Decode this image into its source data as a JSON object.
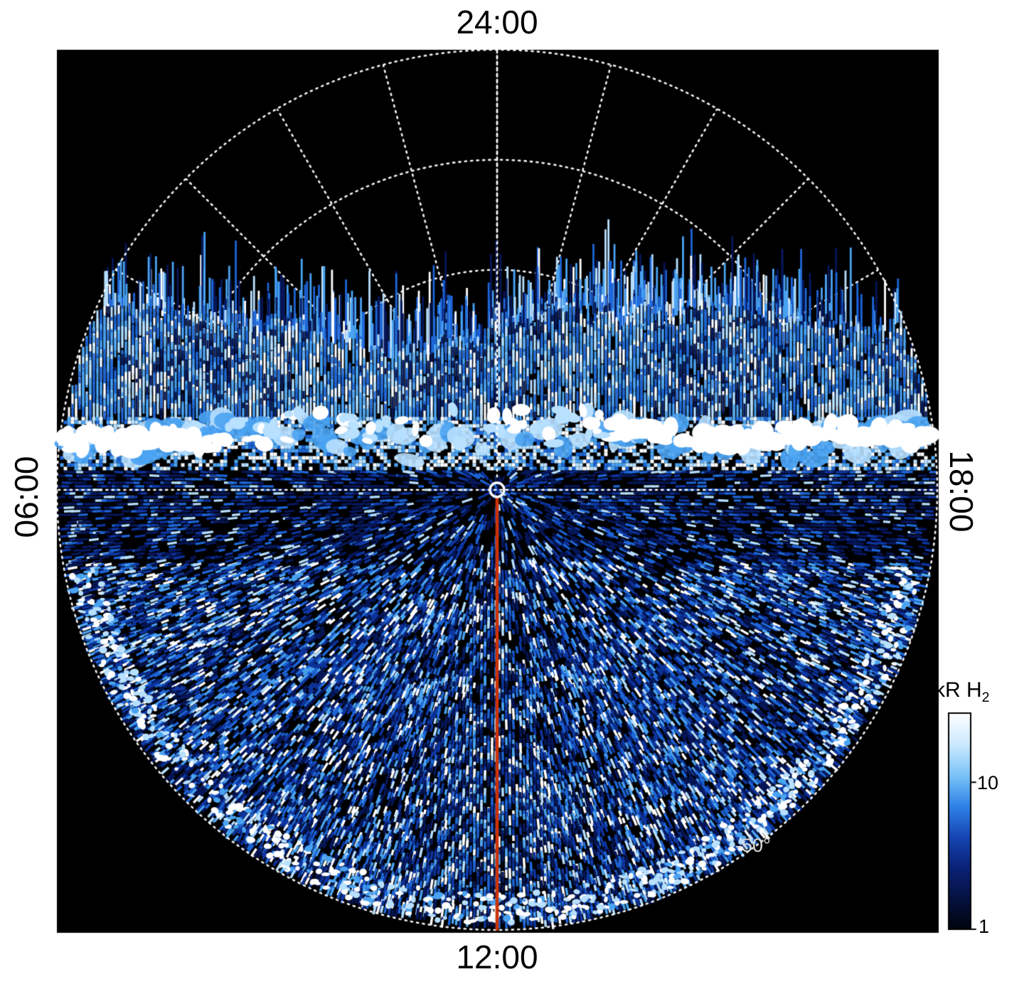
{
  "figure": {
    "page_bg": "#ffffff",
    "plot_bg": "#000000",
    "grid_color": "#ffffff",
    "axis_labels": {
      "top": "24:00",
      "bottom": "12:00",
      "left": "06:00",
      "right": "18:00"
    },
    "latitude_label": "-50°",
    "colorbar": {
      "title_main": "kR H",
      "title_sub": "2",
      "ticks": [
        {
          "label": "10",
          "frac": 0.68
        },
        {
          "label": "1",
          "frac": 0.0
        }
      ],
      "colors_bottom_to_top": [
        "#01040f",
        "#051240",
        "#0a2278",
        "#1646b4",
        "#2f84e8",
        "#7cc4f8",
        "#cdeaff",
        "#ffffff"
      ]
    },
    "meridian_line_color": "#cc3305",
    "pole_marker_color": "#ffffff"
  },
  "chart_data": {
    "type": "heatmap",
    "projection": "polar",
    "quantity": "H2 auroral emission brightness",
    "units": "kR",
    "angular_axis": "local time (hours)",
    "angular_tick_labels": [
      "24:00",
      "06:00",
      "12:00",
      "18:00"
    ],
    "angular_tick_hours": [
      24,
      6,
      12,
      18
    ],
    "radial_axis": "latitude (degrees)",
    "radial_ring_fractions": [
      0.25,
      0.5,
      0.75,
      1.0
    ],
    "radial_rings_deg": [
      -80,
      -70,
      -60,
      -50
    ],
    "outer_ring_deg": -50,
    "outer_ring_label": "-50°",
    "pole_deg": -90,
    "color_scale": {
      "type": "log",
      "min": 1,
      "max": 30,
      "tick_values": [
        1,
        10
      ],
      "tick_labels": [
        "1",
        "10"
      ],
      "title": "kR H2"
    },
    "grid": {
      "style": "dotted",
      "color": "#ffffff",
      "meridians_every_hours": 1,
      "legend_position": "right"
    },
    "features": {
      "no_data_sector": "nightside sector toward 24:00 is black (no coverage) down to an irregular streaked boundary at roughly 0.4 of the disk radius above the pole",
      "emission_region": "speckled blue/white emission of order 1-30 kR fills the remainder of the disk from the irregular boundary through 06:00-12:00-18:00",
      "bright_auroral_band": "intense white emission band just above the 06:00-18:00 dotted line, brightest toward the dawn (06:00) and dusk (18:00) limbs",
      "dark_lane": "darker low-emission lane immediately below the bright band around the 06:00-18:00 line",
      "noon_meridian_line": {
        "color": "#cc3305",
        "from": "pole (center)",
        "to": "12:00 limb"
      },
      "pole_marker": "small open white circle at the pole (center)"
    },
    "palette": {
      "deep": "#06175a",
      "dark": "#0e36a2",
      "mid": "#1e66d8",
      "light": "#4aa3f2",
      "pale": "#b8e0ff",
      "white": "#ffffff"
    },
    "render_seed": 20240229
  }
}
